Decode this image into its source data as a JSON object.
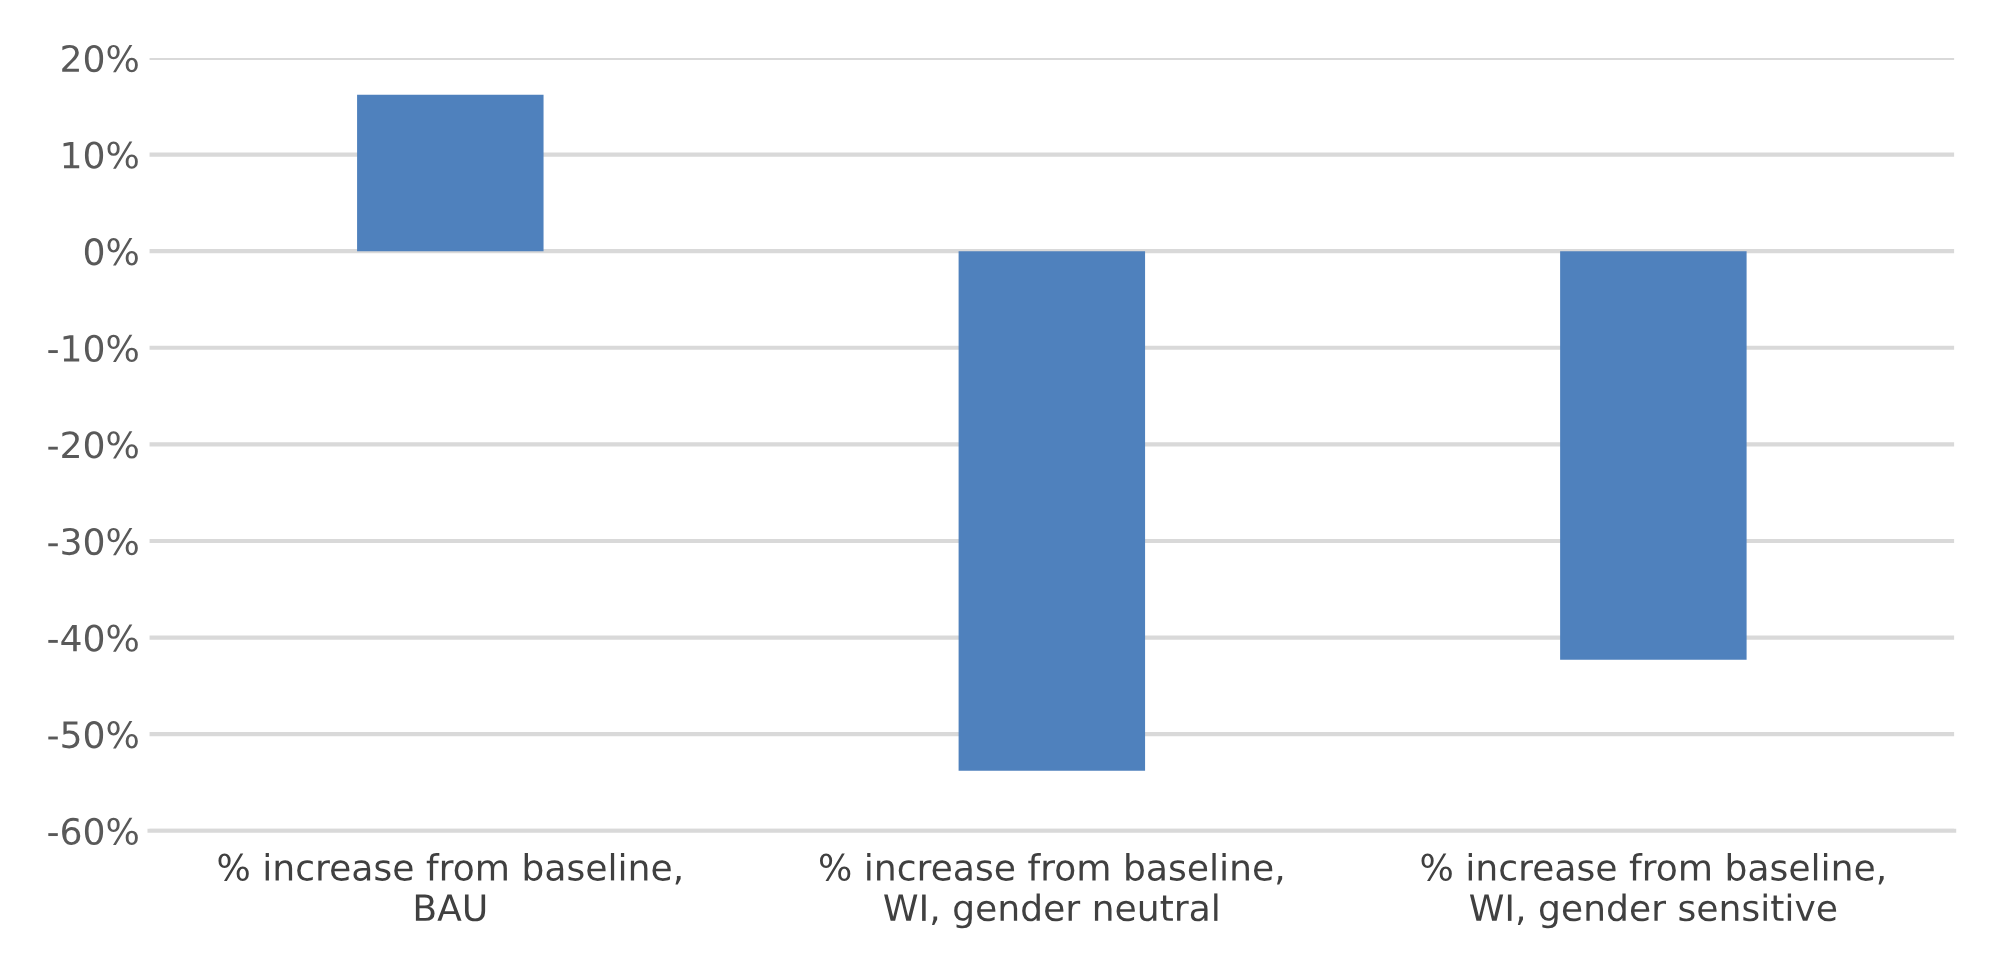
{
  "chart_data": {
    "type": "bar",
    "categories": [
      "% increase from baseline,\nBAU",
      "% increase from baseline,\nWI, gender neutral",
      "% increase from baseline,\nWI, gender sensitive"
    ],
    "values": [
      16.2,
      -53.8,
      -42.3
    ],
    "color": "#4f81bd",
    "ylim": [
      -60,
      20
    ],
    "yticks": [
      {
        "value": -60,
        "label": "-60%"
      },
      {
        "value": -50,
        "label": "-50%"
      },
      {
        "value": -40,
        "label": "-40%"
      },
      {
        "value": -30,
        "label": "-30%"
      },
      {
        "value": -20,
        "label": "-20%"
      },
      {
        "value": -10,
        "label": "-10%"
      },
      {
        "value": 0,
        "label": "0%"
      },
      {
        "value": 10,
        "label": "10%"
      },
      {
        "value": 20,
        "label": "20%"
      }
    ],
    "grid": "y",
    "legend": false
  }
}
